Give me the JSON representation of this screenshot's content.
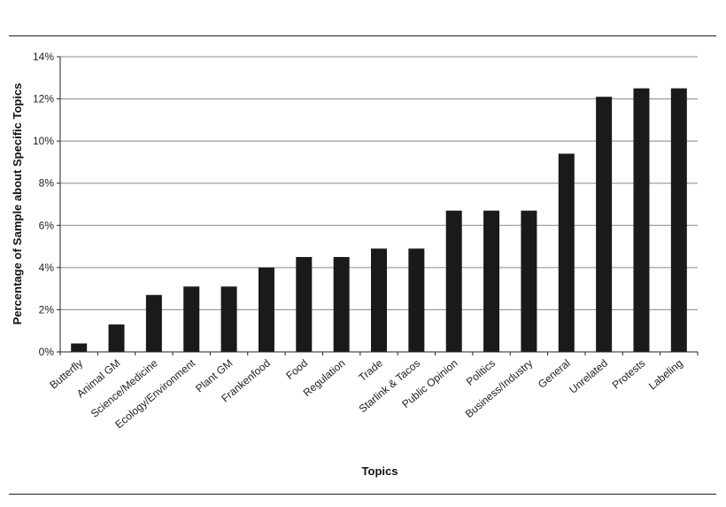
{
  "chart_data": {
    "type": "bar",
    "title": "",
    "xlabel": "Topics",
    "ylabel": "Percentage of Sample about Specific Topics",
    "categories": [
      "Butterfly",
      "Animal GM",
      "Science/Medicine",
      "Ecology/Environment",
      "Plant GM",
      "Frankenfood",
      "Food",
      "Regulation",
      "Trade",
      "Starlink & Tacos",
      "Public Opinion",
      "Politics",
      "Business/Industry",
      "General",
      "Unrelated",
      "Protests",
      "Labeling"
    ],
    "values": [
      0.4,
      1.3,
      2.7,
      3.1,
      3.1,
      4.0,
      4.5,
      4.5,
      4.9,
      4.9,
      6.7,
      6.7,
      6.7,
      9.4,
      12.1,
      12.5,
      12.5
    ],
    "ylim": [
      0,
      14
    ],
    "yticks": [
      0,
      2,
      4,
      6,
      8,
      10,
      12,
      14
    ],
    "ytick_suffix": "%",
    "grid": true,
    "bar_color": "#1a1a1a",
    "grid_color": "#888888"
  }
}
